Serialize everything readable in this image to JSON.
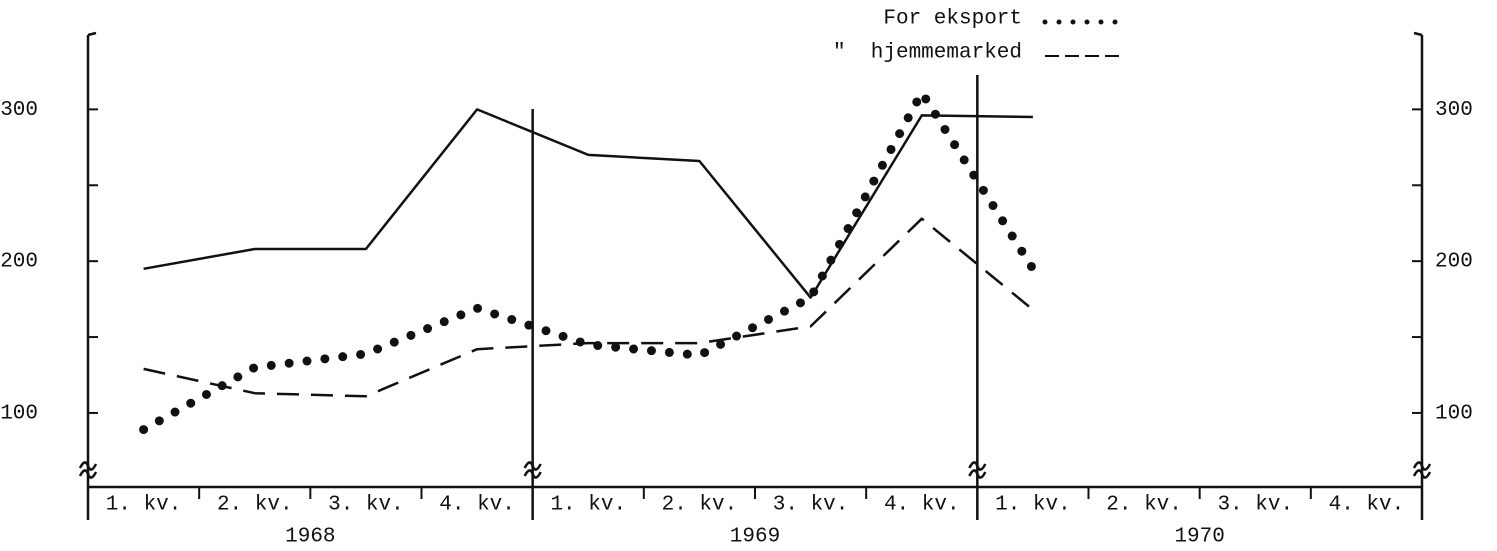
{
  "chart_data": {
    "type": "line",
    "categories": [
      "1. kv.",
      "2. kv.",
      "3. kv.",
      "4. kv.",
      "1. kv.",
      "2. kv.",
      "3. kv.",
      "4. kv.",
      "1. kv.",
      "2. kv.",
      "3. kv.",
      "4. kv."
    ],
    "year_groups": [
      "1968",
      "1969",
      "1970"
    ],
    "series": [
      {
        "color": "#111111",
        "style": "solid",
        "values": [
          195,
          208,
          208,
          300,
          270,
          266,
          176,
          296,
          295,
          null,
          null,
          null
        ]
      },
      {
        "name": "For eksport",
        "color": "#111111",
        "style": "dotted",
        "values": [
          89,
          130,
          139,
          169,
          145,
          138,
          176,
          311,
          195,
          null,
          null,
          null
        ]
      },
      {
        "name": "\"  hjemmemarked",
        "color": "#111111",
        "style": "dashed",
        "values": [
          129,
          113,
          111,
          142,
          146,
          146,
          157,
          228,
          168,
          null,
          null,
          null
        ]
      }
    ],
    "ylim": [
      69,
      349
    ],
    "yticks": [
      100,
      200,
      300
    ],
    "minor_yticks": [
      150,
      250
    ]
  }
}
